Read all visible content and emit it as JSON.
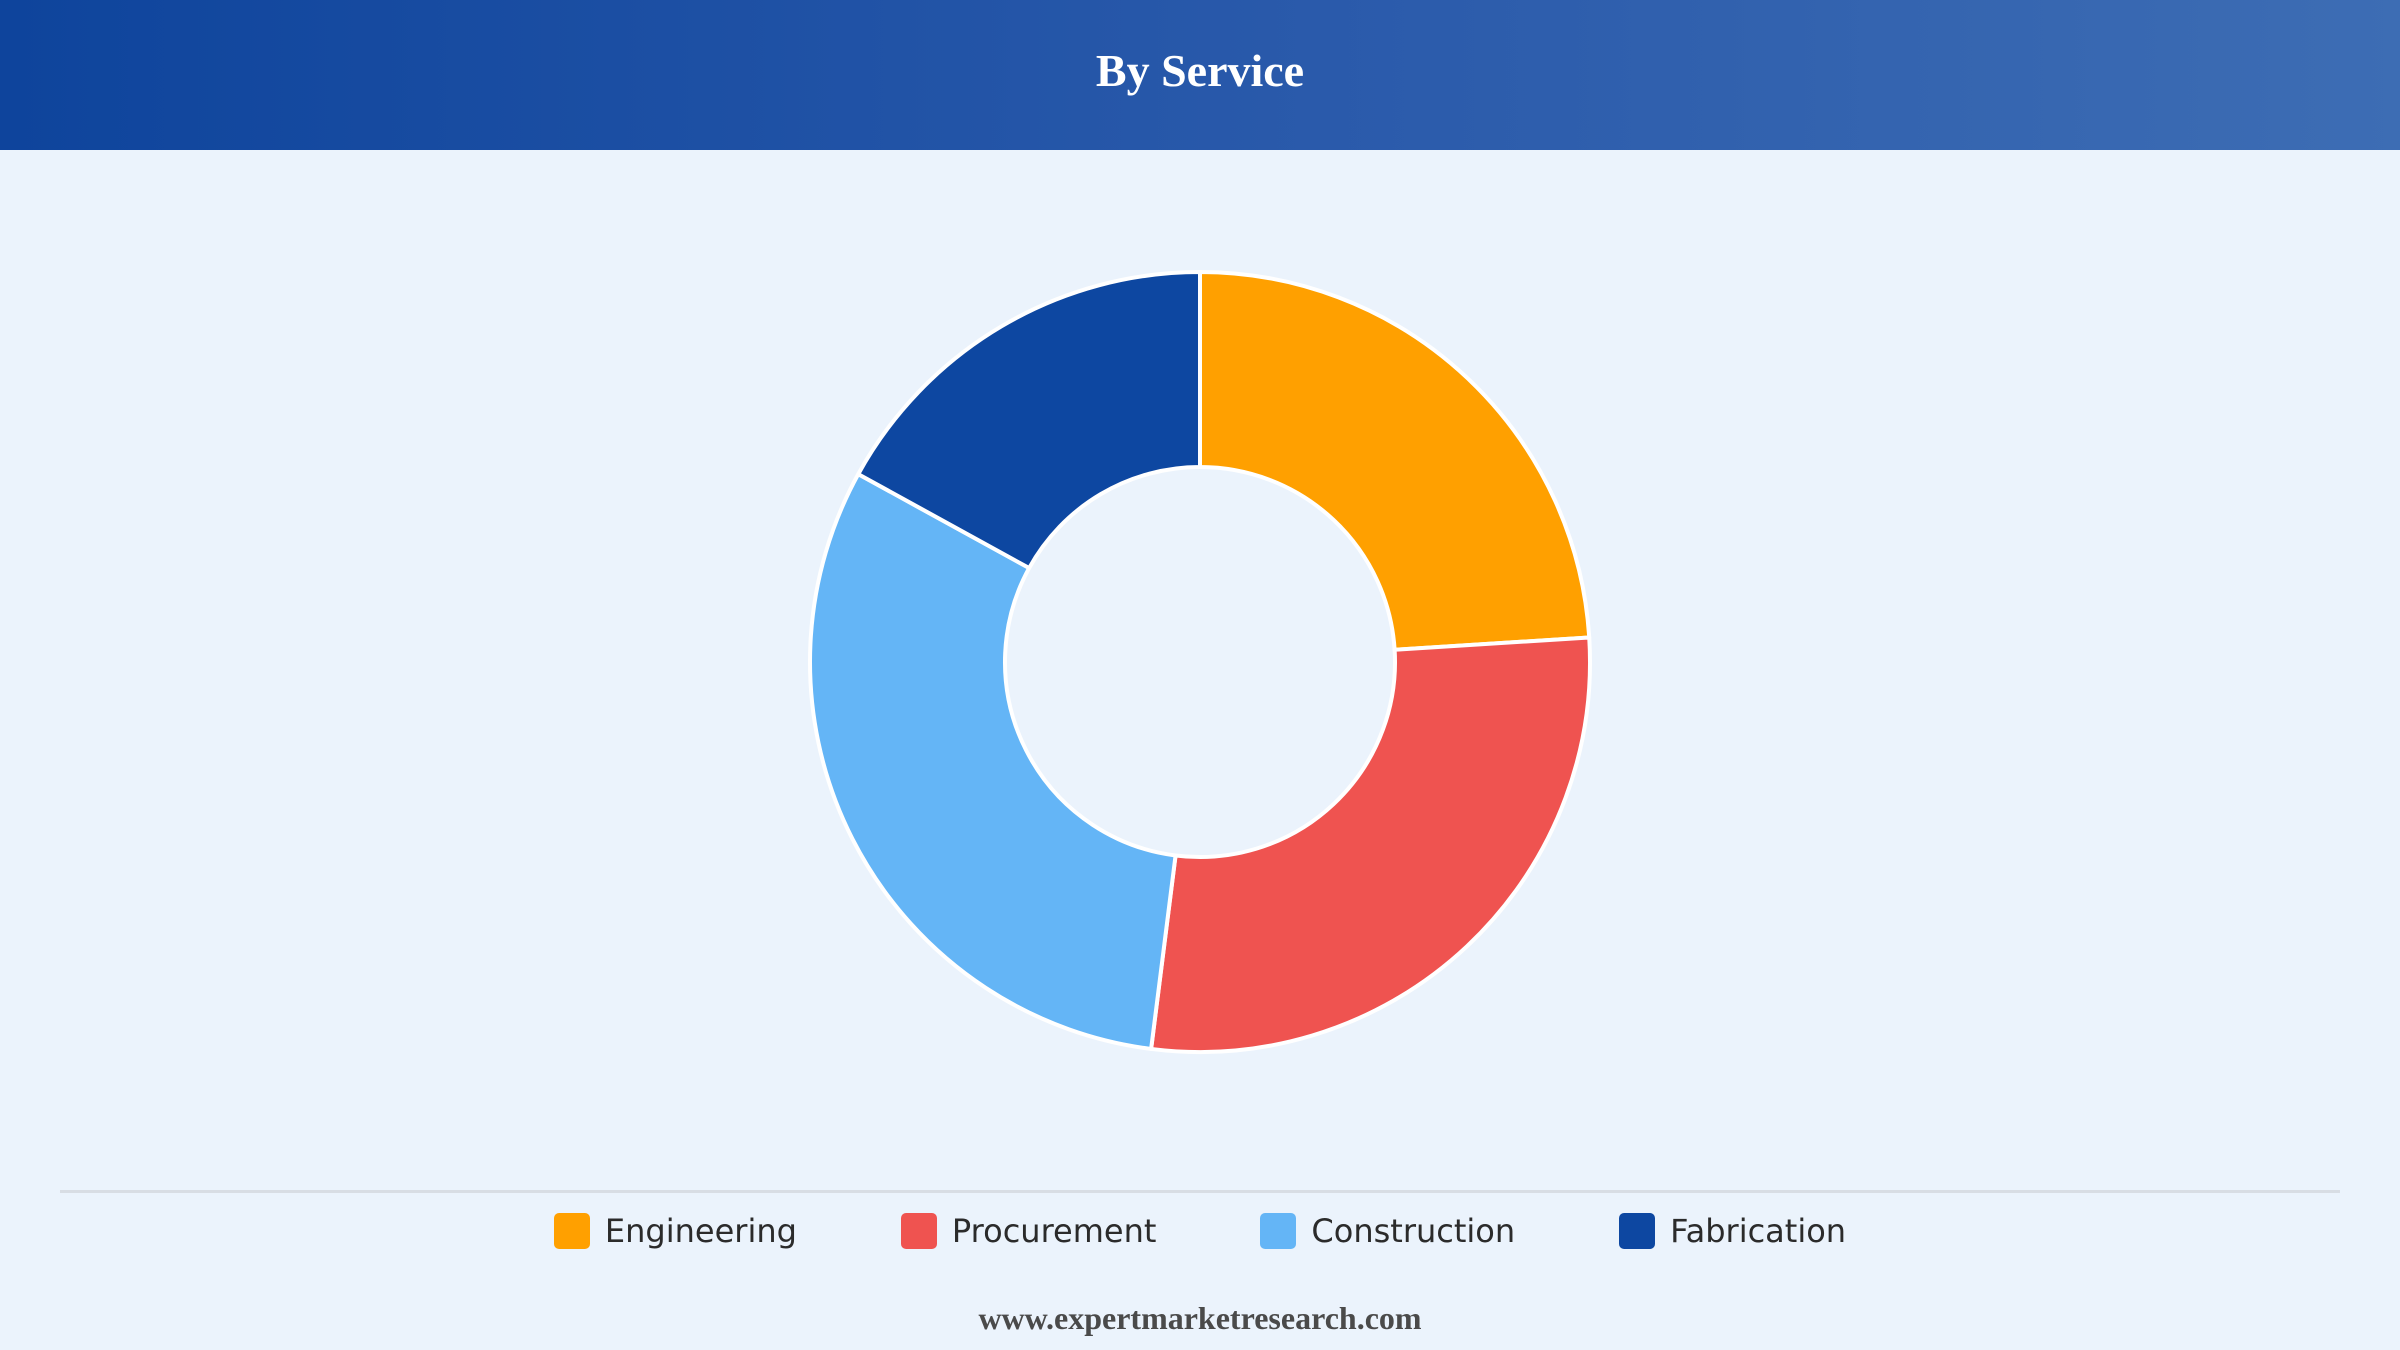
{
  "header": {
    "title": "By Service"
  },
  "chart_data": {
    "type": "pie",
    "variant": "donut",
    "title": "By Service",
    "categories": [
      "Engineering",
      "Procurement",
      "Construction",
      "Fabrication"
    ],
    "values": [
      24,
      28,
      31,
      17
    ],
    "unit": "%",
    "colors": [
      "#FFA000",
      "#EF5350",
      "#64B5F6",
      "#0D47A1"
    ],
    "legend_position": "bottom"
  },
  "footer": {
    "source": "www.expertmarketresearch.com"
  }
}
